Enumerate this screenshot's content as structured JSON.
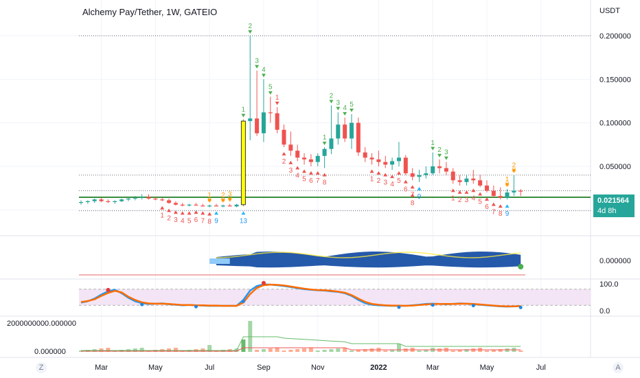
{
  "header": {
    "title": "Alchemy Pay/Tether, 1W, GATEIO",
    "currency": "USDT"
  },
  "price_tag": {
    "value": "0.021564",
    "countdown": "4d 8h"
  },
  "corner_buttons": {
    "left": "Z",
    "right": "A"
  },
  "colors": {
    "up": "#26a69a",
    "down": "#ef5350",
    "highlight": "#ffff00",
    "support": "#388e3c",
    "fast": "#2196f3",
    "slow": "#ff6d00"
  },
  "chart_data": {
    "type": "candlestick",
    "timeframe": "1W",
    "price_axis": {
      "ticks": [
        "0.200000",
        "0.150000",
        "0.100000",
        "0.050000",
        "0.000000"
      ],
      "values": [
        0.2,
        0.15,
        0.1,
        0.05,
        0
      ],
      "range": [
        -0.006,
        0.215
      ]
    },
    "time_axis": {
      "ticks": [
        "Mar",
        "May",
        "Jul",
        "Sep",
        "Nov",
        "2022",
        "Mar",
        "May",
        "Jul"
      ],
      "x": [
        3,
        11,
        19,
        27,
        35,
        44,
        52,
        60,
        68
      ]
    },
    "candles": [
      [
        0,
        0.008,
        0.011,
        0.006,
        0.009
      ],
      [
        1,
        0.009,
        0.011,
        0.007,
        0.01
      ],
      [
        2,
        0.01,
        0.013,
        0.008,
        0.012
      ],
      [
        3,
        0.012,
        0.014,
        0.009,
        0.01
      ],
      [
        4,
        0.01,
        0.012,
        0.008,
        0.009
      ],
      [
        5,
        0.009,
        0.011,
        0.007,
        0.01
      ],
      [
        6,
        0.01,
        0.013,
        0.009,
        0.012
      ],
      [
        7,
        0.012,
        0.014,
        0.01,
        0.013
      ],
      [
        8,
        0.013,
        0.016,
        0.011,
        0.014
      ],
      [
        9,
        0.014,
        0.018,
        0.012,
        0.015
      ],
      [
        10,
        0.015,
        0.018,
        0.012,
        0.013
      ],
      [
        11,
        0.013,
        0.015,
        0.011,
        0.012
      ],
      [
        12,
        0.012,
        0.014,
        0.01,
        0.011
      ],
      [
        13,
        0.011,
        0.013,
        0.007,
        0.008
      ],
      [
        14,
        0.008,
        0.01,
        0.005,
        0.006
      ],
      [
        15,
        0.006,
        0.008,
        0.004,
        0.005
      ],
      [
        16,
        0.005,
        0.007,
        0.004,
        0.006
      ],
      [
        17,
        0.006,
        0.008,
        0.005,
        0.005
      ],
      [
        18,
        0.005,
        0.007,
        0.004,
        0.004
      ],
      [
        19,
        0.004,
        0.006,
        0.003,
        0.005
      ],
      [
        20,
        0.005,
        0.007,
        0.004,
        0.004
      ],
      [
        21,
        0.004,
        0.006,
        0.003,
        0.005
      ],
      [
        22,
        0.005,
        0.007,
        0.004,
        0.004
      ],
      [
        23,
        0.004,
        0.007,
        0.003,
        0.006
      ],
      [
        24,
        0.006,
        0.104,
        0.004,
        0.102
      ],
      [
        25,
        0.102,
        0.2,
        0.08,
        0.105
      ],
      [
        26,
        0.105,
        0.16,
        0.085,
        0.088
      ],
      [
        27,
        0.088,
        0.15,
        0.078,
        0.112
      ],
      [
        28,
        0.112,
        0.13,
        0.1,
        0.111
      ],
      [
        29,
        0.111,
        0.118,
        0.088,
        0.092
      ],
      [
        30,
        0.092,
        0.098,
        0.072,
        0.075
      ],
      [
        31,
        0.075,
        0.09,
        0.062,
        0.068
      ],
      [
        32,
        0.068,
        0.075,
        0.056,
        0.06
      ],
      [
        33,
        0.06,
        0.065,
        0.052,
        0.058
      ],
      [
        34,
        0.058,
        0.064,
        0.05,
        0.055
      ],
      [
        35,
        0.055,
        0.065,
        0.05,
        0.062
      ],
      [
        36,
        0.062,
        0.072,
        0.048,
        0.07
      ],
      [
        37,
        0.07,
        0.12,
        0.064,
        0.082
      ],
      [
        38,
        0.082,
        0.112,
        0.075,
        0.098
      ],
      [
        39,
        0.098,
        0.106,
        0.078,
        0.082
      ],
      [
        40,
        0.082,
        0.11,
        0.07,
        0.1
      ],
      [
        41,
        0.1,
        0.106,
        0.062,
        0.066
      ],
      [
        42,
        0.066,
        0.072,
        0.055,
        0.06
      ],
      [
        43,
        0.06,
        0.065,
        0.052,
        0.058
      ],
      [
        44,
        0.058,
        0.068,
        0.05,
        0.055
      ],
      [
        45,
        0.055,
        0.062,
        0.048,
        0.052
      ],
      [
        46,
        0.052,
        0.06,
        0.046,
        0.056
      ],
      [
        47,
        0.056,
        0.078,
        0.05,
        0.06
      ],
      [
        48,
        0.06,
        0.063,
        0.04,
        0.042
      ],
      [
        49,
        0.042,
        0.048,
        0.034,
        0.038
      ],
      [
        50,
        0.038,
        0.046,
        0.032,
        0.04
      ],
      [
        51,
        0.04,
        0.05,
        0.036,
        0.042
      ],
      [
        52,
        0.042,
        0.066,
        0.04,
        0.05
      ],
      [
        53,
        0.05,
        0.058,
        0.042,
        0.048
      ],
      [
        54,
        0.048,
        0.055,
        0.04,
        0.044
      ],
      [
        55,
        0.044,
        0.048,
        0.03,
        0.034
      ],
      [
        56,
        0.034,
        0.04,
        0.028,
        0.032
      ],
      [
        57,
        0.032,
        0.04,
        0.028,
        0.036
      ],
      [
        58,
        0.036,
        0.046,
        0.03,
        0.034
      ],
      [
        59,
        0.034,
        0.04,
        0.026,
        0.028
      ],
      [
        60,
        0.028,
        0.034,
        0.02,
        0.022
      ],
      [
        61,
        0.022,
        0.028,
        0.014,
        0.016
      ],
      [
        62,
        0.016,
        0.026,
        0.012,
        0.014
      ],
      [
        63,
        0.014,
        0.024,
        0.012,
        0.02
      ],
      [
        64,
        0.02,
        0.04,
        0.016,
        0.022
      ],
      [
        65,
        0.022,
        0.024,
        0.016,
        0.021
      ]
    ],
    "highlight_candle": 24,
    "support_line": 0.0145,
    "dotted_levels": [
      0.2,
      0.04,
      0.022,
      -0.001
    ],
    "labels_above": [
      {
        "i": 25,
        "t": "2",
        "c": "#4caf50"
      },
      {
        "i": 26,
        "t": "3",
        "c": "#4caf50"
      },
      {
        "i": 27,
        "t": "4",
        "c": "#4caf50"
      },
      {
        "i": 28,
        "t": "5",
        "c": "#4caf50"
      },
      {
        "i": 24,
        "t": "1",
        "c": "#4caf50"
      },
      {
        "i": 36,
        "t": "1",
        "c": "#4caf50"
      },
      {
        "i": 37,
        "t": "2",
        "c": "#4caf50"
      },
      {
        "i": 38,
        "t": "3",
        "c": "#4caf50"
      },
      {
        "i": 39,
        "t": "4",
        "c": "#4caf50"
      },
      {
        "i": 40,
        "t": "5",
        "c": "#4caf50"
      },
      {
        "i": 52,
        "t": "1",
        "c": "#4caf50"
      },
      {
        "i": 53,
        "t": "2",
        "c": "#4caf50"
      },
      {
        "i": 54,
        "t": "3",
        "c": "#4caf50"
      },
      {
        "i": 19,
        "t": "1",
        "c": "#ff9800"
      },
      {
        "i": 21,
        "t": "2",
        "c": "#ff9800"
      },
      {
        "i": 22,
        "t": "3",
        "c": "#ff9800"
      },
      {
        "i": 63,
        "t": "1",
        "c": "#ff9800"
      },
      {
        "i": 64,
        "t": "2",
        "c": "#ff9800"
      },
      {
        "i": 29,
        "t": "1",
        "c": "#ef5350"
      }
    ],
    "labels_below": [
      {
        "i": 12,
        "t": "1",
        "c": "#ef5350"
      },
      {
        "i": 13,
        "t": "2",
        "c": "#ef5350"
      },
      {
        "i": 14,
        "t": "3",
        "c": "#ef5350"
      },
      {
        "i": 15,
        "t": "4",
        "c": "#ef5350"
      },
      {
        "i": 16,
        "t": "5",
        "c": "#ef5350"
      },
      {
        "i": 17,
        "t": "6",
        "c": "#ef5350"
      },
      {
        "i": 18,
        "t": "7",
        "c": "#ef5350"
      },
      {
        "i": 19,
        "t": "8",
        "c": "#ef5350"
      },
      {
        "i": 20,
        "t": "9",
        "c": "#2196f3"
      },
      {
        "i": 24,
        "t": "13",
        "c": "#2196f3"
      },
      {
        "i": 30,
        "t": "2",
        "c": "#ef5350"
      },
      {
        "i": 31,
        "t": "3",
        "c": "#ef5350"
      },
      {
        "i": 32,
        "t": "4",
        "c": "#ef5350"
      },
      {
        "i": 33,
        "t": "5",
        "c": "#ef5350"
      },
      {
        "i": 34,
        "t": "6",
        "c": "#ef5350"
      },
      {
        "i": 35,
        "t": "7",
        "c": "#ef5350"
      },
      {
        "i": 36,
        "t": "8",
        "c": "#ef5350"
      },
      {
        "i": 43,
        "t": "1",
        "c": "#ef5350"
      },
      {
        "i": 44,
        "t": "2",
        "c": "#ef5350"
      },
      {
        "i": 45,
        "t": "3",
        "c": "#ef5350"
      },
      {
        "i": 46,
        "t": "4",
        "c": "#ef5350"
      },
      {
        "i": 47,
        "t": "5",
        "c": "#ef5350"
      },
      {
        "i": 48,
        "t": "6",
        "c": "#ef5350"
      },
      {
        "i": 49,
        "t": "7",
        "c": "#ef5350"
      },
      {
        "i": 49,
        "t": "8",
        "c": "#ef5350"
      },
      {
        "i": 50,
        "t": "9",
        "c": "#2196f3"
      },
      {
        "i": 55,
        "t": "1",
        "c": "#ef5350"
      },
      {
        "i": 56,
        "t": "2",
        "c": "#ef5350"
      },
      {
        "i": 57,
        "t": "3",
        "c": "#ef5350"
      },
      {
        "i": 58,
        "t": "4",
        "c": "#ef5350"
      },
      {
        "i": 59,
        "t": "5",
        "c": "#ef5350"
      },
      {
        "i": 60,
        "t": "6",
        "c": "#ef5350"
      },
      {
        "i": 61,
        "t": "7",
        "c": "#ef5350"
      },
      {
        "i": 62,
        "t": "8",
        "c": "#ef5350"
      },
      {
        "i": 63,
        "t": "9",
        "c": "#2196f3"
      }
    ],
    "x_markers": [
      {
        "i": 19,
        "c": "#ff9800"
      },
      {
        "i": 21,
        "c": "#ff9800"
      },
      {
        "i": 22,
        "c": "#ff9800"
      },
      {
        "i": 63,
        "c": "#ff9800"
      },
      {
        "i": 64,
        "c": "#ff9800"
      }
    ],
    "panes": {
      "oscillator": {
        "tick": "0.000000",
        "range": [
          -1,
          1
        ]
      },
      "stochastic": {
        "ticks": [
          "100.0",
          "0.0"
        ],
        "values": [
          100,
          0
        ],
        "band": [
          20,
          80
        ],
        "fast": [
          30,
          35,
          45,
          60,
          72,
          78,
          65,
          48,
          35,
          28,
          25,
          26,
          27,
          24,
          22,
          20,
          21,
          20,
          19,
          18,
          18,
          18,
          18,
          18,
          40,
          75,
          92,
          98,
          97,
          95,
          92,
          88,
          84,
          80,
          78,
          76,
          75,
          72,
          70,
          65,
          55,
          40,
          28,
          22,
          20,
          19,
          18,
          18,
          18,
          20,
          22,
          25,
          26,
          25,
          24,
          25,
          27,
          26,
          24,
          22,
          20,
          18,
          16,
          15,
          16,
          17
        ],
        "slow": [
          32,
          36,
          42,
          55,
          66,
          74,
          68,
          52,
          40,
          31,
          27,
          26,
          26,
          25,
          23,
          21,
          21,
          20,
          20,
          19,
          19,
          18,
          18,
          18,
          30,
          62,
          85,
          95,
          97,
          96,
          94,
          90,
          86,
          82,
          79,
          77,
          76,
          74,
          71,
          67,
          58,
          45,
          33,
          25,
          22,
          20,
          19,
          19,
          18,
          19,
          21,
          23,
          25,
          25,
          25,
          25,
          26,
          26,
          25,
          23,
          21,
          19,
          17,
          16,
          16,
          17
        ]
      },
      "volume": {
        "tick_top": "2000000000.000000",
        "tick_bottom": "0.000000"
      }
    }
  }
}
